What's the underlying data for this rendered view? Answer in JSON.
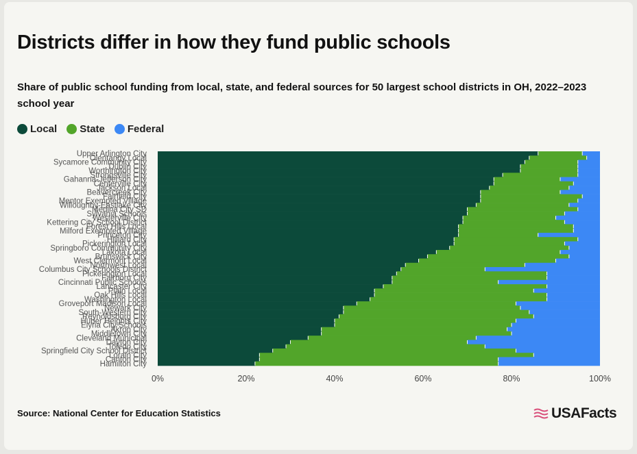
{
  "title": "Districts differ in how they fund public schools",
  "subtitle": "Share of public school funding from local, state, and federal sources for 50 largest school districts in OH, 2022–2023 school year",
  "legend": [
    {
      "label": "Local",
      "color": "#0c4a3a"
    },
    {
      "label": "State",
      "color": "#52a52a"
    },
    {
      "label": "Federal",
      "color": "#3c88f5"
    }
  ],
  "source": "Source: National Center for Education Statistics",
  "logo": {
    "text": "USAFacts",
    "icon": "usa-flag-icon"
  },
  "chart_data": {
    "type": "bar",
    "orientation": "horizontal",
    "stacked": true,
    "xlim": [
      0,
      100
    ],
    "x_ticks": [
      "0%",
      "20%",
      "40%",
      "60%",
      "80%",
      "100%"
    ],
    "categories": [
      "Upper Arlington City",
      "Olentangy Local",
      "Sycamore Community City",
      "Dublin City",
      "Worthington City",
      "Strongsville City",
      "Gahanna-Jefferson City",
      "Centerville City",
      "Jackson Local",
      "Beavercreek City",
      "Fairfield City",
      "Mentor Exempted Village",
      "Willoughby-Eastlake City",
      "Medina City SD",
      "Sylvania Schools",
      "Westerville City",
      "Kettering City School District",
      "Forest Hills Local",
      "Milford Exempted Village",
      "Princeton City",
      "Hilliard City",
      "Pickerington Local",
      "Springboro Community City",
      "Lakota Local",
      "Brunswick City",
      "West Clermont Local",
      "Northwest Local",
      "Columbus City Schools District",
      "Pickerington Local",
      "Fairborn City",
      "Cincinnati Public Schools",
      "Lancaster City",
      "Plain Local",
      "Oak Hills Local",
      "Washington Local",
      "Groveport Madison Local",
      "Newark City",
      "South-Western City",
      "Reynoldsburg City",
      "Huber Heights City",
      "Elyria City Schools",
      "Akron City",
      "Middletown City",
      "Cleveland Municipal",
      "Dayton City",
      "Toledo City",
      "Springfield City School District",
      "Lorain City",
      "Canton City",
      "Hamilton City"
    ],
    "series": [
      {
        "name": "Local",
        "color": "#0c4a3a",
        "values": [
          86,
          84,
          83,
          82,
          82,
          78,
          76,
          76,
          75,
          73,
          73,
          73,
          72,
          70,
          70,
          69,
          69,
          68,
          68,
          68,
          67,
          67,
          66,
          63,
          61,
          59,
          56,
          55,
          54,
          53,
          53,
          51,
          49,
          49,
          48,
          45,
          42,
          42,
          41,
          40,
          40,
          37,
          37,
          34,
          30,
          29,
          26,
          23,
          23,
          22
        ]
      },
      {
        "name": "State",
        "color": "#52a52a",
        "values": [
          10,
          13,
          12,
          13,
          13,
          17,
          15,
          18,
          18,
          18,
          23,
          22,
          21,
          25,
          22,
          21,
          23,
          26,
          26,
          18,
          28,
          25,
          27,
          28,
          32,
          31,
          27,
          19,
          34,
          35,
          24,
          37,
          36,
          39,
          40,
          36,
          40,
          42,
          44,
          41,
          40,
          42,
          43,
          38,
          40,
          45,
          55,
          62,
          54,
          55
        ]
      },
      {
        "name": "Federal",
        "color": "#3c88f5",
        "values": [
          4,
          3,
          5,
          5,
          5,
          5,
          9,
          6,
          7,
          9,
          4,
          5,
          7,
          5,
          8,
          10,
          8,
          6,
          6,
          14,
          5,
          8,
          7,
          9,
          7,
          10,
          17,
          26,
          12,
          12,
          23,
          12,
          15,
          12,
          12,
          19,
          18,
          16,
          15,
          19,
          20,
          21,
          20,
          28,
          30,
          26,
          19,
          15,
          23,
          23
        ]
      }
    ]
  }
}
